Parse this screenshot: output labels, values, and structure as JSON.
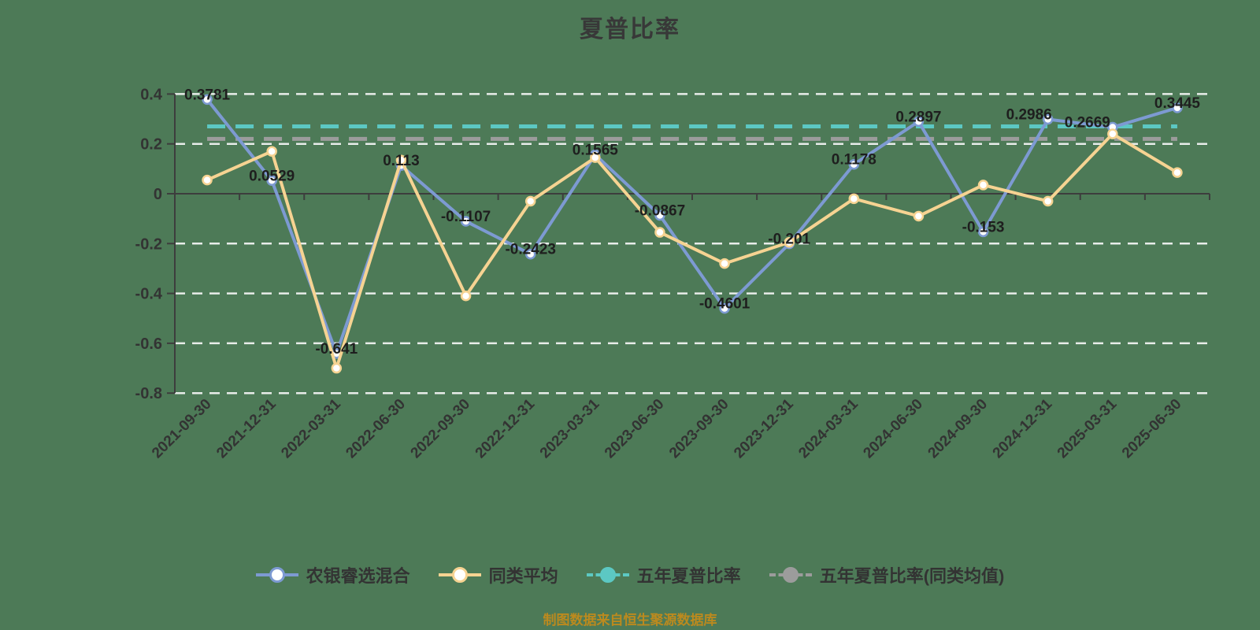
{
  "title": "夏普比率",
  "source_note": "制图数据来自恒生聚源数据库",
  "background_color": "#4d7a57",
  "chart_data": {
    "type": "line",
    "categories": [
      "2021-09-30",
      "2021-12-31",
      "2022-03-31",
      "2022-06-30",
      "2022-09-30",
      "2022-12-31",
      "2023-03-31",
      "2023-06-30",
      "2023-09-30",
      "2023-12-31",
      "2024-03-31",
      "2024-06-30",
      "2024-09-30",
      "2024-12-31",
      "2025-03-31",
      "2025-06-30"
    ],
    "series": [
      {
        "name": "农银睿选混合",
        "color": "#7d9ad2",
        "line_style": "solid",
        "marker": "hollow-circle",
        "values": [
          0.3781,
          0.0529,
          -0.641,
          0.113,
          -0.1107,
          -0.2423,
          0.1565,
          -0.0867,
          -0.4601,
          -0.201,
          0.1178,
          0.2897,
          -0.153,
          0.2986,
          0.2669,
          0.3445
        ],
        "labels": [
          "0.3781",
          "0.0529",
          "-0.641",
          "0.113",
          "-0.1107",
          "-0.2423",
          "0.1565",
          "-0.0867",
          "-0.4601",
          "-0.201",
          "0.1178",
          "0.2897",
          "-0.153",
          "0.2986",
          "0.2669",
          "0.3445"
        ]
      },
      {
        "name": "同类平均",
        "color": "#f6d392",
        "line_style": "solid",
        "marker": "hollow-circle",
        "values": [
          0.055,
          0.17,
          -0.7,
          0.135,
          -0.41,
          -0.03,
          0.145,
          -0.155,
          -0.28,
          -0.195,
          -0.02,
          -0.09,
          0.035,
          -0.03,
          0.24,
          0.085
        ],
        "labels": []
      },
      {
        "name": "五年夏普比率",
        "color": "#5cc8c3",
        "line_style": "dashed",
        "marker": "filled-circle",
        "constant": 0.27
      },
      {
        "name": "五年夏普比率(同类均值)",
        "color": "#9c9c9c",
        "line_style": "dashed",
        "marker": "filled-circle",
        "constant": 0.22
      }
    ],
    "yticks": [
      0.4,
      0.2,
      0,
      -0.2,
      -0.4,
      -0.6,
      -0.8
    ],
    "ylim": [
      -0.8,
      0.4
    ],
    "xlabel": "",
    "ylabel": "",
    "grid": "horizontal-white-dashed",
    "legend_position": "bottom",
    "x_label_rotation_deg": 45
  }
}
